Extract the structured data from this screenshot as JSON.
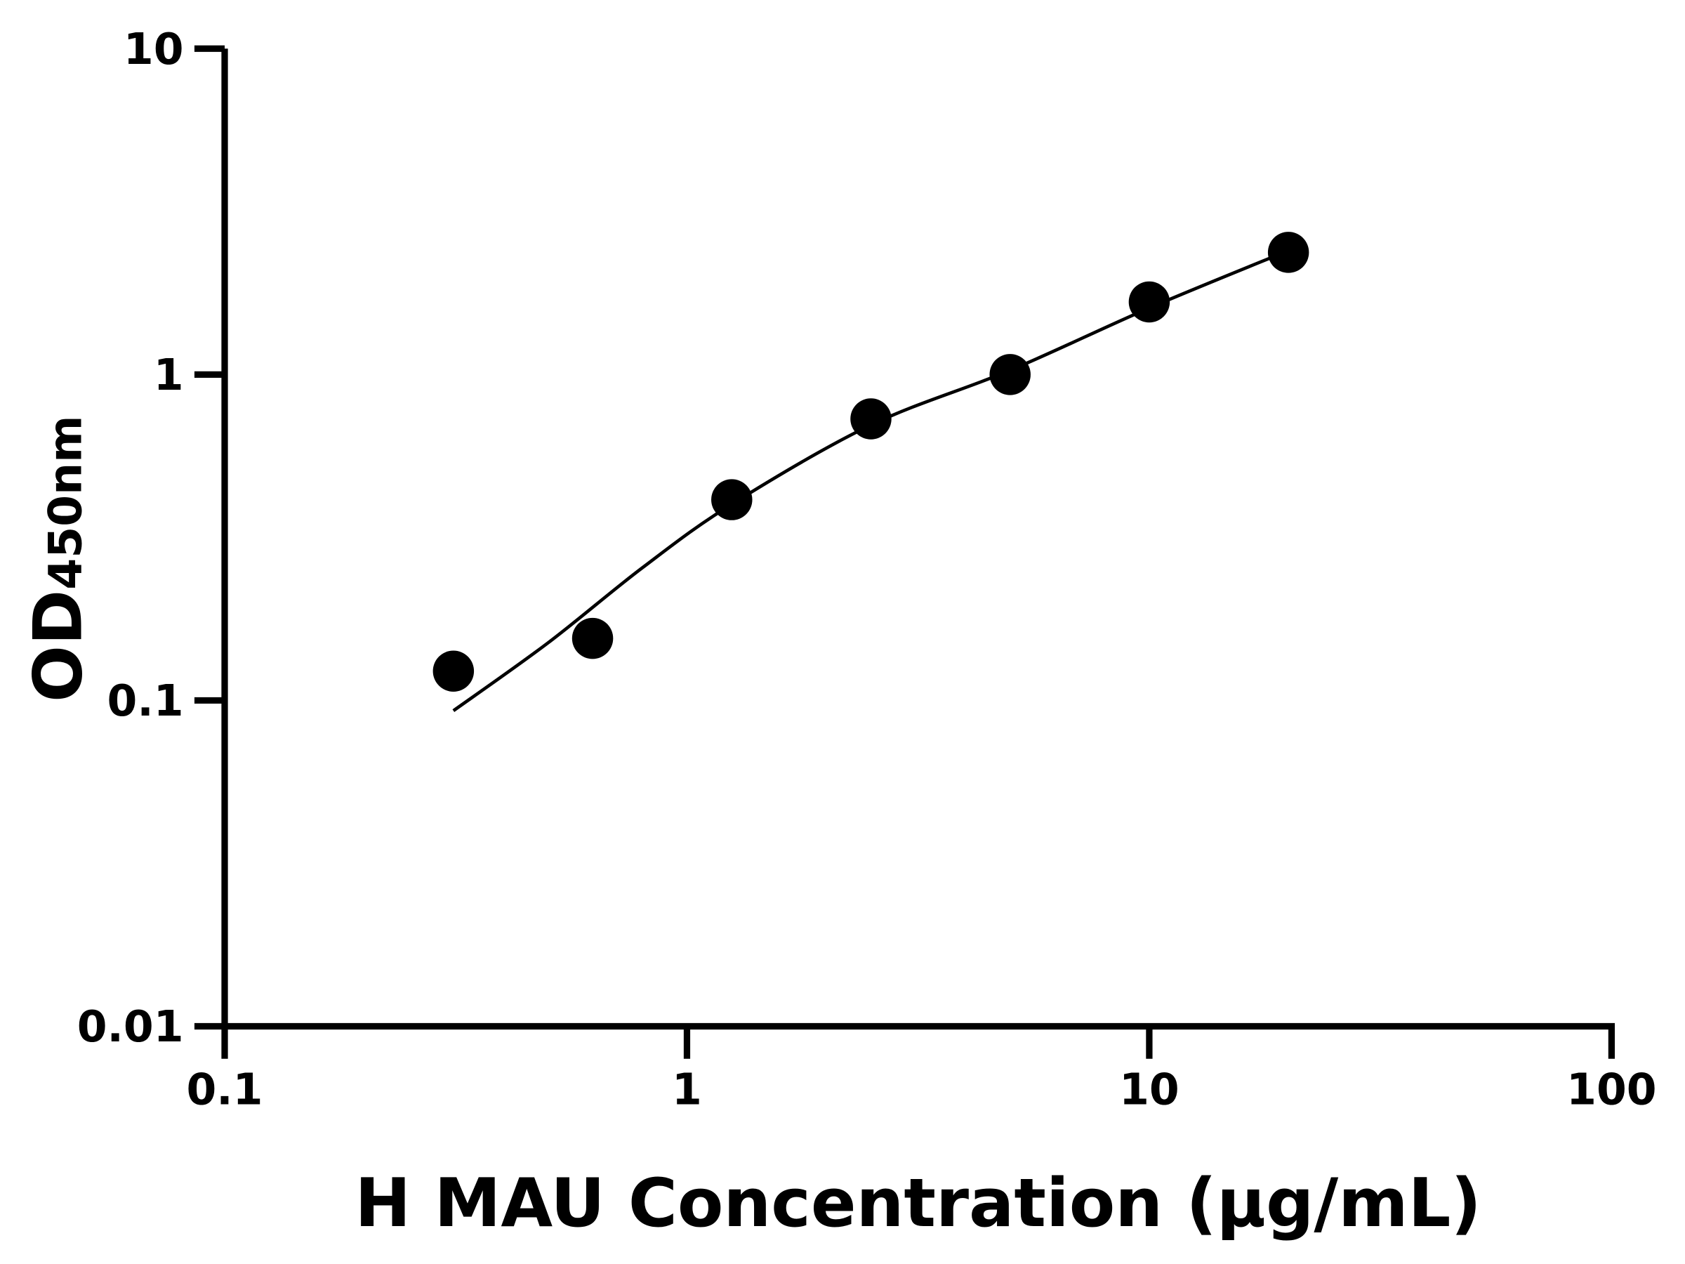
{
  "chart_data": {
    "type": "scatter",
    "title": "",
    "xlabel": "H MAU Concentration (μg/mL)",
    "ylabel": "OD",
    "ylabel_subscript": "450nm",
    "x_scale": "log",
    "y_scale": "log",
    "xlim": [
      0.1,
      100
    ],
    "ylim": [
      0.01,
      10
    ],
    "x_ticks": [
      "0.1",
      "1",
      "10",
      "100"
    ],
    "y_ticks": [
      "0.01",
      "0.1",
      "1",
      "10"
    ],
    "grid": false,
    "legend": "none",
    "marker_color": "#000000",
    "points": [
      {
        "x": 0.3125,
        "y": 0.123
      },
      {
        "x": 0.625,
        "y": 0.155
      },
      {
        "x": 1.25,
        "y": 0.413
      },
      {
        "x": 2.5,
        "y": 0.731
      },
      {
        "x": 5,
        "y": 1.0
      },
      {
        "x": 10,
        "y": 1.67
      },
      {
        "x": 20,
        "y": 2.37
      }
    ],
    "fit_curve": [
      {
        "x": 0.3125,
        "y": 0.093
      },
      {
        "x": 0.5,
        "y": 0.15
      },
      {
        "x": 0.8,
        "y": 0.255
      },
      {
        "x": 1.25,
        "y": 0.4
      },
      {
        "x": 2.5,
        "y": 0.7
      },
      {
        "x": 5,
        "y": 1.03
      },
      {
        "x": 10,
        "y": 1.6
      },
      {
        "x": 20,
        "y": 2.4
      }
    ]
  }
}
